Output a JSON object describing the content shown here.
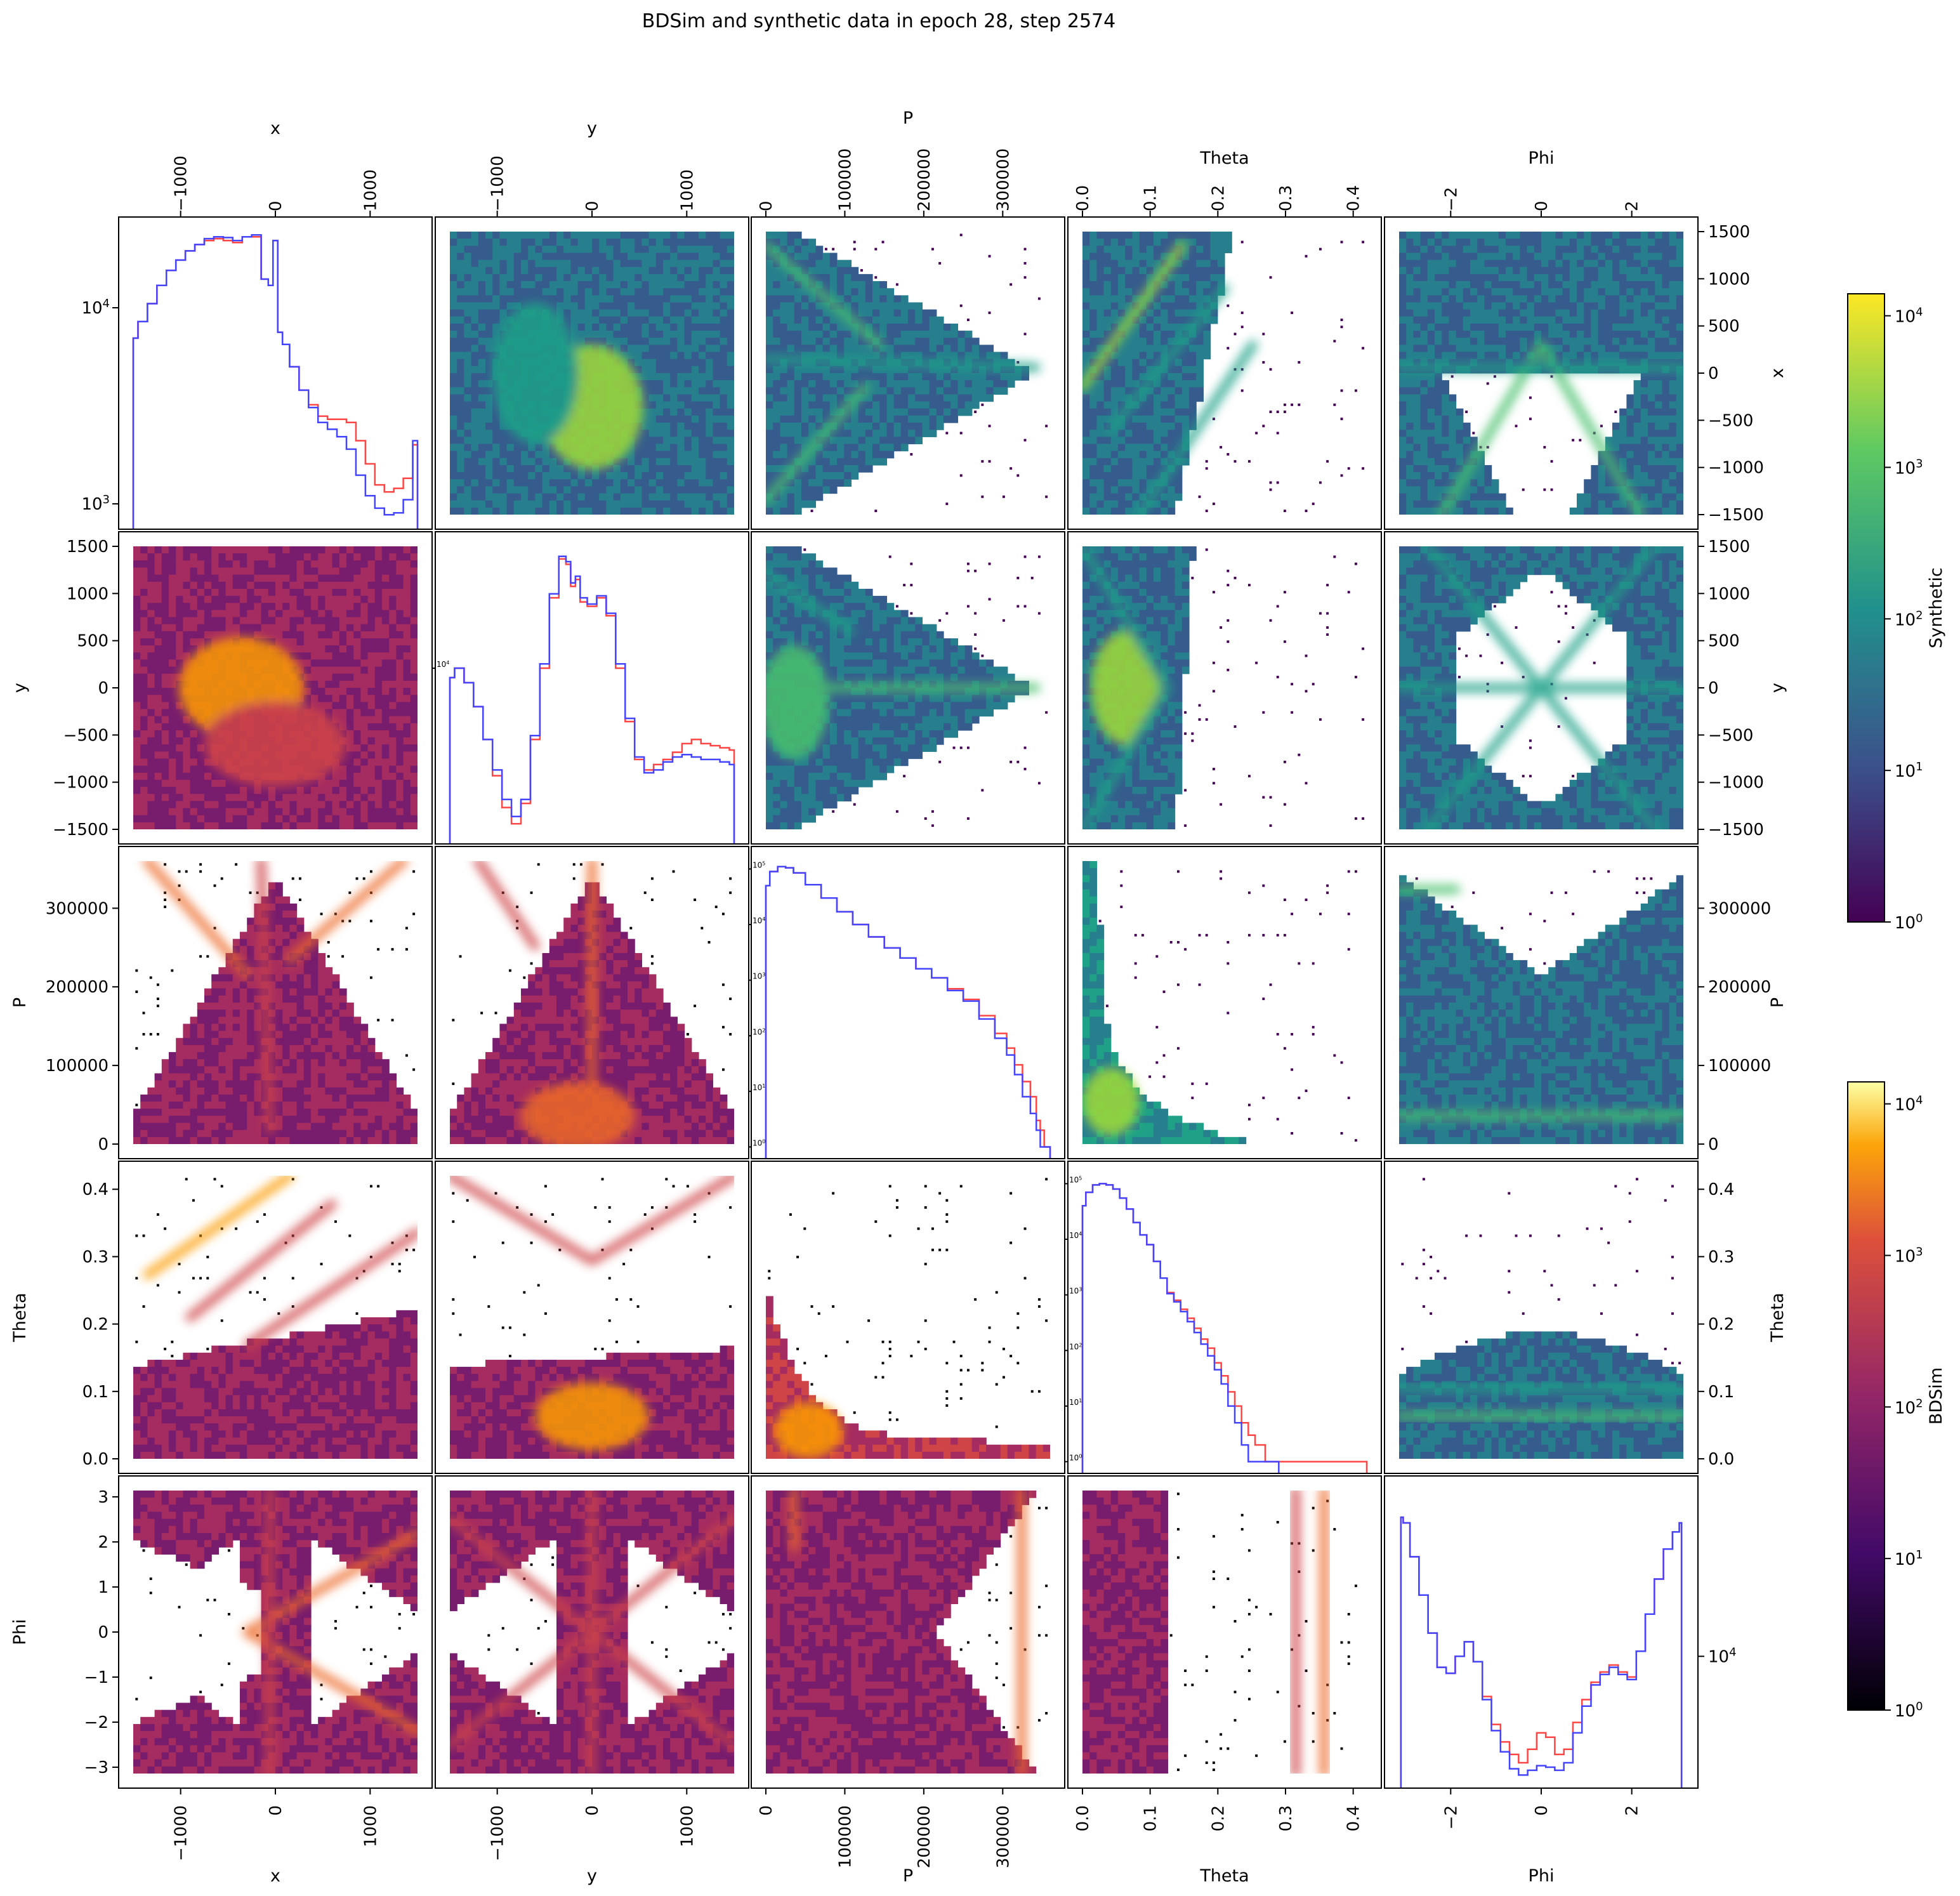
{
  "figure": {
    "title": "BDSim and synthetic data in epoch 28, step 2574",
    "variables": [
      "x",
      "y",
      "P",
      "Theta",
      "Phi"
    ]
  },
  "chart_data": [
    {
      "type": "heatmap",
      "role": "corner-plot",
      "title": "BDSim and synthetic data in epoch 28, step 2574",
      "variables": [
        {
          "name": "x",
          "range": [
            -1500,
            1500
          ],
          "ticks": [
            -1000,
            0,
            1000
          ],
          "tick_labels": [
            "−1000",
            "0",
            "1000"
          ]
        },
        {
          "name": "y",
          "range": [
            -1500,
            1500
          ],
          "ticks": [
            -1000,
            0,
            1000
          ],
          "tick_labels": [
            "−1000",
            "0",
            "1000"
          ]
        },
        {
          "name": "P",
          "range": [
            0,
            360000
          ],
          "ticks": [
            0,
            100000,
            200000,
            300000
          ],
          "tick_labels": [
            "0",
            "100000",
            "200000",
            "300000"
          ]
        },
        {
          "name": "Theta",
          "range": [
            0,
            0.42
          ],
          "ticks": [
            0.0,
            0.1,
            0.2,
            0.3,
            0.4
          ],
          "tick_labels": [
            "0.0",
            "0.1",
            "0.2",
            "0.3",
            "0.4"
          ]
        },
        {
          "name": "Phi",
          "range": [
            -3.14,
            3.14
          ],
          "ticks": [
            -2,
            0,
            2
          ],
          "tick_labels": [
            "−2",
            "0",
            "2"
          ]
        }
      ],
      "y_ticks": {
        "x": {
          "values": [
            -1500,
            -1000,
            -500,
            0,
            500,
            1000,
            1500
          ],
          "labels": [
            "−1500",
            "−1000",
            "−500",
            "0",
            "500",
            "1000",
            "1500"
          ]
        },
        "y": {
          "values": [
            -1500,
            -1000,
            -500,
            0,
            500,
            1000,
            1500
          ],
          "labels": [
            "−1500",
            "−1000",
            "−500",
            "0",
            "500",
            "1000",
            "1500"
          ]
        },
        "P": {
          "values": [
            0,
            100000,
            200000,
            300000
          ],
          "labels": [
            "0",
            "100000",
            "200000",
            "300000"
          ]
        },
        "Theta": {
          "values": [
            0.0,
            0.1,
            0.2,
            0.3,
            0.4
          ],
          "labels": [
            "0.0",
            "0.1",
            "0.2",
            "0.3",
            "0.4"
          ]
        },
        "Phi": {
          "values": [
            -3,
            -2,
            -1,
            0,
            1,
            2,
            3
          ],
          "labels": [
            "−3",
            "−2",
            "−1",
            "0",
            "1",
            "2",
            "3"
          ]
        }
      },
      "upper_triangle": "Synthetic",
      "lower_triangle": "BDSim",
      "scale": "log",
      "colorbars": [
        {
          "label": "Synthetic",
          "colormap": "viridis",
          "range": [
            1,
            10000
          ],
          "ticks": [
            "10^0",
            "10^1",
            "10^2",
            "10^3",
            "10^4"
          ]
        },
        {
          "label": "BDSim",
          "colormap": "inferno",
          "range": [
            1,
            10000
          ],
          "ticks": [
            "10^0",
            "10^1",
            "10^2",
            "10^3",
            "10^4"
          ]
        }
      ],
      "diagonal_series": [
        {
          "color": "#ff4444",
          "role": "BDSim"
        },
        {
          "color": "#4444ff",
          "role": "Synthetic"
        }
      ],
      "diagonal": [
        {
          "variable": "x",
          "yscale": "log",
          "ylim": [
            800,
            25000
          ],
          "yticks": {
            "values": [
              1000,
              10000
            ],
            "labels": [
              "10^3",
              "10^4"
            ]
          },
          "x": [
            -1500,
            -1400,
            -1300,
            -1200,
            -1100,
            -1000,
            -900,
            -800,
            -700,
            -600,
            -500,
            -400,
            -300,
            -200,
            -100,
            -50,
            0,
            50,
            100,
            200,
            300,
            400,
            500,
            600,
            700,
            800,
            900,
            1000,
            1100,
            1200,
            1300,
            1400,
            1500
          ],
          "bdsim": [
            7000,
            8500,
            10500,
            13000,
            15500,
            17500,
            19500,
            21000,
            22000,
            22500,
            22000,
            21500,
            23000,
            23000,
            14000,
            13000,
            22000,
            7500,
            6500,
            5000,
            3800,
            3200,
            2800,
            2700,
            2700,
            2600,
            2100,
            1600,
            1250,
            1150,
            1200,
            1350,
            2000
          ],
          "synthetic": [
            7000,
            8500,
            10500,
            13000,
            15500,
            17500,
            19500,
            21000,
            22500,
            23000,
            22800,
            22000,
            23000,
            23500,
            14000,
            13000,
            22000,
            7500,
            6500,
            5000,
            3800,
            3100,
            2600,
            2400,
            2200,
            1900,
            1400,
            1100,
            950,
            880,
            900,
            1050,
            2100
          ]
        },
        {
          "variable": "y",
          "yscale": "log",
          "ylim": [
            1500,
            40000
          ],
          "yticks": {
            "values": [
              10000
            ],
            "labels": [
              "10^4"
            ]
          },
          "x": [
            -1500,
            -1400,
            -1300,
            -1200,
            -1100,
            -1000,
            -900,
            -800,
            -700,
            -600,
            -500,
            -400,
            -300,
            -250,
            -200,
            -150,
            -100,
            0,
            100,
            200,
            300,
            400,
            500,
            600,
            700,
            800,
            900,
            1000,
            1100,
            1200,
            1300,
            1400,
            1500
          ],
          "bdsim": [
            9000,
            10000,
            8500,
            6500,
            4500,
            3000,
            2100,
            1750,
            2200,
            4500,
            10000,
            22000,
            34000,
            32000,
            25000,
            27000,
            21000,
            20000,
            22000,
            18000,
            10000,
            5500,
            3600,
            3200,
            3400,
            3600,
            3900,
            4300,
            4500,
            4300,
            4200,
            4100,
            4000
          ],
          "synthetic": [
            9000,
            10000,
            8500,
            6500,
            4500,
            3200,
            2300,
            1900,
            2300,
            4700,
            10500,
            23000,
            35000,
            33000,
            26000,
            28000,
            22000,
            20500,
            22500,
            18500,
            10500,
            5700,
            3700,
            3100,
            3200,
            3500,
            3700,
            3800,
            3700,
            3600,
            3600,
            3500,
            3400
          ]
        },
        {
          "variable": "P",
          "yscale": "log",
          "ylim": [
            0.8,
            150000
          ],
          "yticks": {
            "values": [
              1,
              10,
              100,
              1000,
              10000,
              100000
            ],
            "labels": [
              "10^0",
              "10^1",
              "10^2",
              "10^3",
              "10^4",
              "10^5"
            ]
          },
          "x": [
            0,
            10000,
            20000,
            30000,
            40000,
            60000,
            80000,
            100000,
            120000,
            140000,
            160000,
            180000,
            200000,
            220000,
            240000,
            260000,
            280000,
            300000,
            310000,
            320000,
            330000,
            340000,
            345000,
            350000,
            355000,
            360000
          ],
          "bdsim": [
            50000,
            90000,
            110000,
            105000,
            85000,
            52000,
            30000,
            17000,
            10000,
            6000,
            3800,
            2500,
            1600,
            1100,
            700,
            450,
            230,
            110,
            60,
            30,
            15,
            8,
            3,
            2,
            1,
            1
          ],
          "synthetic": [
            50000,
            90000,
            110000,
            105000,
            85000,
            52000,
            30000,
            17000,
            10000,
            6000,
            3800,
            2500,
            1600,
            1100,
            650,
            420,
            200,
            90,
            45,
            20,
            8,
            4,
            2,
            1,
            1,
            1
          ]
        },
        {
          "variable": "Theta",
          "yscale": "log",
          "ylim": [
            0.8,
            150000
          ],
          "yticks": {
            "values": [
              1,
              10,
              100,
              1000,
              10000,
              100000
            ],
            "labels": [
              "10^0",
              "10^1",
              "10^2",
              "10^3",
              "10^4",
              "10^5"
            ]
          },
          "x": [
            0.0,
            0.01,
            0.02,
            0.03,
            0.04,
            0.05,
            0.06,
            0.07,
            0.08,
            0.09,
            0.1,
            0.11,
            0.12,
            0.13,
            0.14,
            0.15,
            0.16,
            0.17,
            0.18,
            0.19,
            0.2,
            0.21,
            0.22,
            0.23,
            0.24,
            0.25,
            0.26,
            0.28,
            0.3,
            0.42
          ],
          "bdsim": [
            40000,
            70000,
            95000,
            100000,
            95000,
            80000,
            55000,
            35000,
            20000,
            12000,
            8000,
            4000,
            2000,
            1100,
            800,
            550,
            380,
            250,
            160,
            110,
            60,
            35,
            18,
            10,
            5,
            3,
            2,
            1,
            1,
            1
          ],
          "synthetic": [
            40000,
            70000,
            95000,
            100000,
            95000,
            80000,
            55000,
            35000,
            20000,
            12000,
            8000,
            4000,
            2000,
            1050,
            750,
            500,
            330,
            210,
            130,
            80,
            45,
            25,
            10,
            5,
            2,
            1,
            1,
            1,
            0,
            0
          ]
        },
        {
          "variable": "Phi",
          "yscale": "log",
          "ylim": [
            3000,
            50000
          ],
          "yticks": {
            "values": [
              10000
            ],
            "labels": [
              "10^4"
            ]
          },
          "x": [
            -3.1,
            -3.0,
            -2.8,
            -2.6,
            -2.4,
            -2.2,
            -2.0,
            -1.8,
            -1.6,
            -1.4,
            -1.2,
            -1.0,
            -0.8,
            -0.6,
            -0.4,
            -0.2,
            0.0,
            0.2,
            0.4,
            0.6,
            0.8,
            1.0,
            1.2,
            1.4,
            1.6,
            1.8,
            2.0,
            2.2,
            2.4,
            2.6,
            2.8,
            3.0,
            3.1
          ],
          "bdsim": [
            38000,
            36000,
            26000,
            18000,
            12500,
            9000,
            8500,
            10000,
            11500,
            9500,
            6800,
            5200,
            4400,
            3900,
            3600,
            4100,
            4800,
            4600,
            3900,
            4100,
            5300,
            6600,
            7800,
            8600,
            9200,
            8600,
            8200,
            10500,
            15000,
            21000,
            28000,
            33000,
            36000
          ],
          "synthetic": [
            38000,
            36000,
            26000,
            18000,
            12500,
            9000,
            8500,
            10000,
            11500,
            9500,
            6600,
            4900,
            4000,
            3400,
            3200,
            3350,
            3500,
            3450,
            3350,
            3600,
            4800,
            6200,
            7600,
            8400,
            9000,
            8400,
            8000,
            10500,
            15000,
            21000,
            28000,
            33000,
            36000
          ]
        }
      ]
    }
  ]
}
